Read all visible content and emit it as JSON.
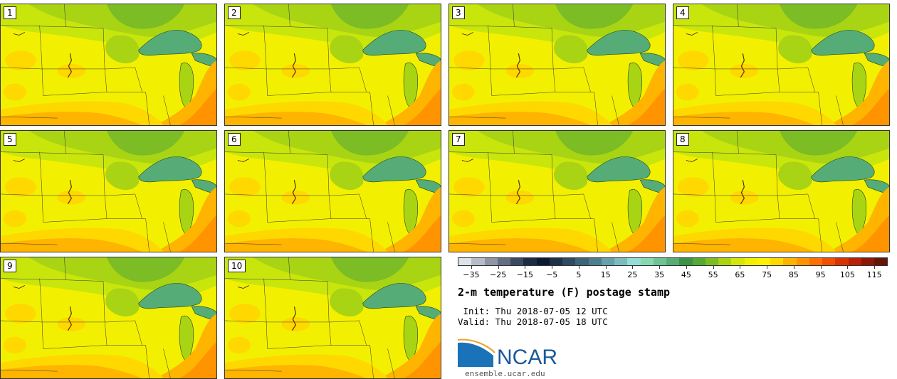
{
  "panels": [
    {
      "label": "1"
    },
    {
      "label": "2"
    },
    {
      "label": "3"
    },
    {
      "label": "4"
    },
    {
      "label": "5"
    },
    {
      "label": "6"
    },
    {
      "label": "7"
    },
    {
      "label": "8"
    },
    {
      "label": "9"
    },
    {
      "label": "10"
    }
  ],
  "colorbar": {
    "colors": [
      "#dde1e8",
      "#b8bcc8",
      "#8e96a6",
      "#646e82",
      "#3c4a60",
      "#1c2c44",
      "#0c1a30",
      "#1c3046",
      "#2e4a62",
      "#3e6478",
      "#4e7e8e",
      "#66a0aa",
      "#7cbcbe",
      "#94dcd6",
      "#86d8b0",
      "#6cc494",
      "#56ac76",
      "#3c9244",
      "#56a834",
      "#7cbc24",
      "#a8d414",
      "#d4e60c",
      "#f0f000",
      "#fff200",
      "#ffd800",
      "#ffb400",
      "#ff9400",
      "#ff7000",
      "#f05000",
      "#d83400",
      "#b82008",
      "#8c1808",
      "#661408"
    ],
    "ticks": [
      "−35",
      "−25",
      "−15",
      "−5",
      "5",
      "15",
      "25",
      "35",
      "45",
      "55",
      "65",
      "75",
      "85",
      "95",
      "105",
      "115"
    ],
    "min": -40,
    "max": 120
  },
  "title": "2-m temperature (F) postage stamp",
  "init_line": " Init: Thu 2018-07-05 12 UTC",
  "valid_line": "Valid: Thu 2018-07-05 18 UTC",
  "logo": {
    "name": "NCAR",
    "url": "ensemble.ucar.edu"
  }
}
